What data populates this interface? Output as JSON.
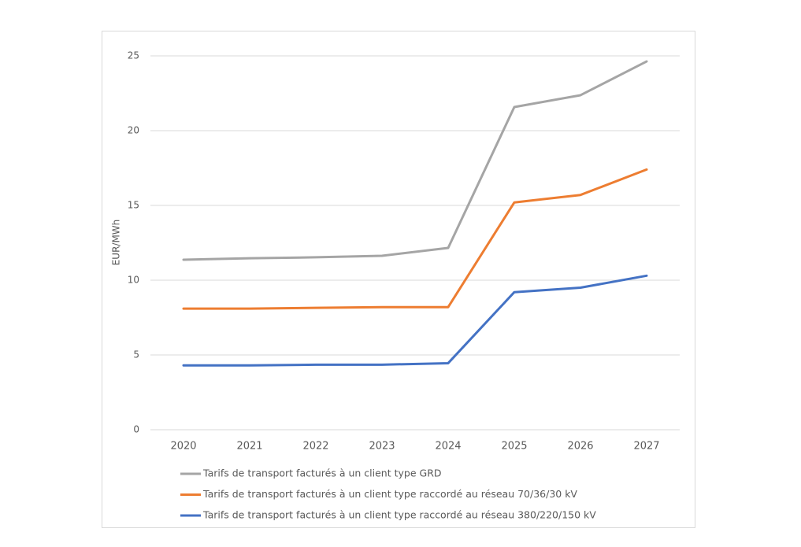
{
  "chart_data": {
    "type": "line",
    "y_label": "EUR/MWh",
    "categories": [
      "2020",
      "2021",
      "2022",
      "2023",
      "2024",
      "2025",
      "2026",
      "2027"
    ],
    "series": [
      {
        "name": "Tarifs de transport facturés à un client type GRD",
        "color": "#a5a5a5",
        "values": [
          11.37,
          11.47,
          11.53,
          11.63,
          12.16,
          21.58,
          22.37,
          24.63
        ]
      },
      {
        "name": "Tarifs de transport facturés à un client type raccordé au réseau 70/36/30 kV",
        "color": "#ed7d31",
        "values": [
          8.1,
          8.1,
          8.15,
          8.2,
          8.2,
          15.2,
          15.7,
          17.4
        ]
      },
      {
        "name": "Tarifs de transport facturés à un client type raccordé au réseau 380/220/150 kV",
        "color": "#4472c4",
        "values": [
          4.3,
          4.3,
          4.35,
          4.35,
          4.45,
          9.2,
          9.5,
          10.3
        ]
      }
    ],
    "ylim": [
      0,
      25
    ],
    "yticks": [
      0,
      5,
      10,
      15,
      20,
      25
    ],
    "grid": true,
    "legend": "bottom"
  }
}
